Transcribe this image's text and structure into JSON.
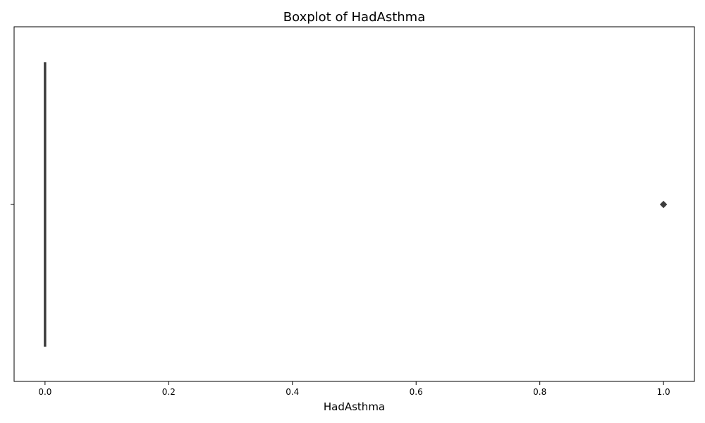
{
  "chart_data": {
    "type": "boxplot",
    "title": "Boxplot of HadAsthma",
    "xlabel": "HadAsthma",
    "ylabel": "",
    "xlim": [
      -0.05,
      1.05
    ],
    "xticks": [
      0.0,
      0.2,
      0.4,
      0.6,
      0.8,
      1.0
    ],
    "xtick_labels": [
      "0.0",
      "0.2",
      "0.4",
      "0.6",
      "0.8",
      "1.0"
    ],
    "orientation": "horizontal",
    "box": {
      "min": 0.0,
      "q1": 0.0,
      "median": 0.0,
      "q3": 0.0,
      "max": 0.0,
      "outliers": [
        1.0
      ]
    },
    "grid": false,
    "colors": {
      "line": "#3d3d3d",
      "outlier": "#3d3d3d",
      "axes": "#000000"
    }
  }
}
